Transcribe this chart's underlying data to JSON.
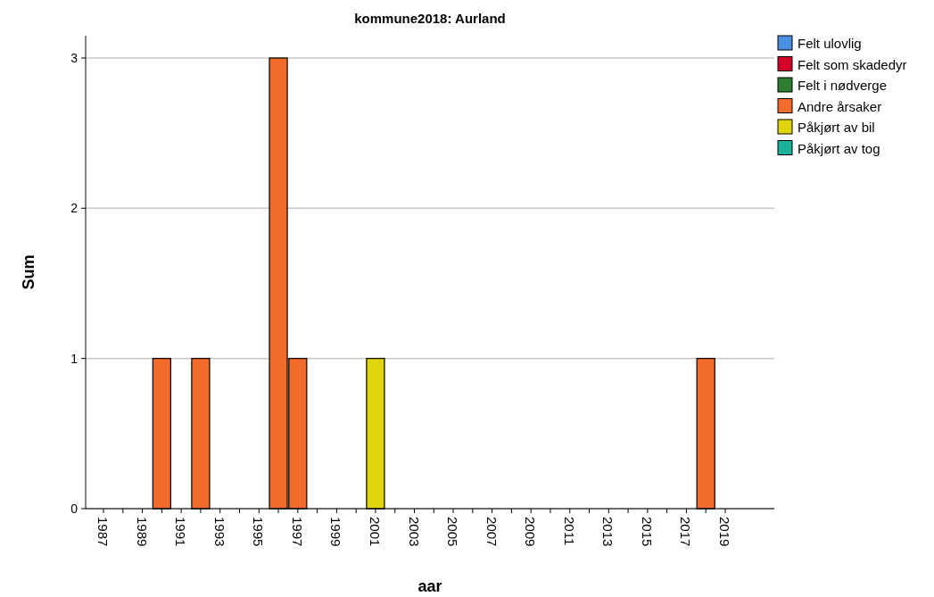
{
  "chart_data": {
    "type": "bar",
    "title": "kommune2018: Aurland",
    "xlabel": "aar",
    "ylabel": "Sum",
    "categories": [
      "1987",
      null,
      "1989",
      null,
      "1991",
      null,
      "1993",
      null,
      "1995",
      null,
      "1997",
      null,
      "1999",
      null,
      "2001",
      null,
      "2003",
      null,
      "2005",
      null,
      "2007",
      null,
      "2009",
      null,
      "2011",
      null,
      "2013",
      null,
      "2015",
      null,
      "2017",
      null,
      "2019"
    ],
    "stacked": true,
    "grid": "y",
    "legend": "top right",
    "ylim": [
      0,
      3
    ],
    "yticks": [
      0,
      1,
      2,
      3
    ],
    "series": [
      {
        "name": "Felt ulovlig",
        "color": "#4a90e2",
        "values": [
          0,
          0,
          0,
          0,
          0,
          0,
          0,
          0,
          0,
          0,
          0,
          0,
          0,
          0,
          0,
          0,
          0,
          0,
          0,
          0,
          0,
          0,
          0,
          0,
          0,
          0,
          0,
          0,
          0,
          0,
          0,
          0,
          0
        ]
      },
      {
        "name": "Felt som skadedyr",
        "color": "#d4002a",
        "values": [
          0,
          0,
          0,
          0,
          0,
          0,
          0,
          0,
          0,
          0,
          0,
          0,
          0,
          0,
          0,
          0,
          0,
          0,
          0,
          0,
          0,
          0,
          0,
          0,
          0,
          0,
          0,
          0,
          0,
          0,
          0,
          0,
          0
        ]
      },
      {
        "name": "Felt i nødverge",
        "color": "#2e7d32",
        "values": [
          0,
          0,
          0,
          0,
          0,
          0,
          0,
          0,
          0,
          0,
          0,
          0,
          0,
          0,
          0,
          0,
          0,
          0,
          0,
          0,
          0,
          0,
          0,
          0,
          0,
          0,
          0,
          0,
          0,
          0,
          0,
          0,
          0
        ]
      },
      {
        "name": "Andre årsaker",
        "color": "#f26b2a",
        "values": [
          0,
          0,
          0,
          1,
          0,
          1,
          0,
          0,
          0,
          3,
          1,
          0,
          0,
          0,
          0,
          0,
          0,
          0,
          0,
          0,
          0,
          0,
          0,
          0,
          0,
          0,
          0,
          0,
          0,
          0,
          0,
          1,
          0
        ]
      },
      {
        "name": "Påkjørt av bil",
        "color": "#e0d40a",
        "values": [
          0,
          0,
          0,
          0,
          0,
          0,
          0,
          0,
          0,
          0,
          0,
          0,
          0,
          0,
          1,
          0,
          0,
          0,
          0,
          0,
          0,
          0,
          0,
          0,
          0,
          0,
          0,
          0,
          0,
          0,
          0,
          0,
          0
        ]
      },
      {
        "name": "Påkjørt av tog",
        "color": "#1ab39a",
        "values": [
          0,
          0,
          0,
          0,
          0,
          0,
          0,
          0,
          0,
          0,
          0,
          0,
          0,
          0,
          0,
          0,
          0,
          0,
          0,
          0,
          0,
          0,
          0,
          0,
          0,
          0,
          0,
          0,
          0,
          0,
          0,
          0,
          0
        ]
      }
    ]
  }
}
